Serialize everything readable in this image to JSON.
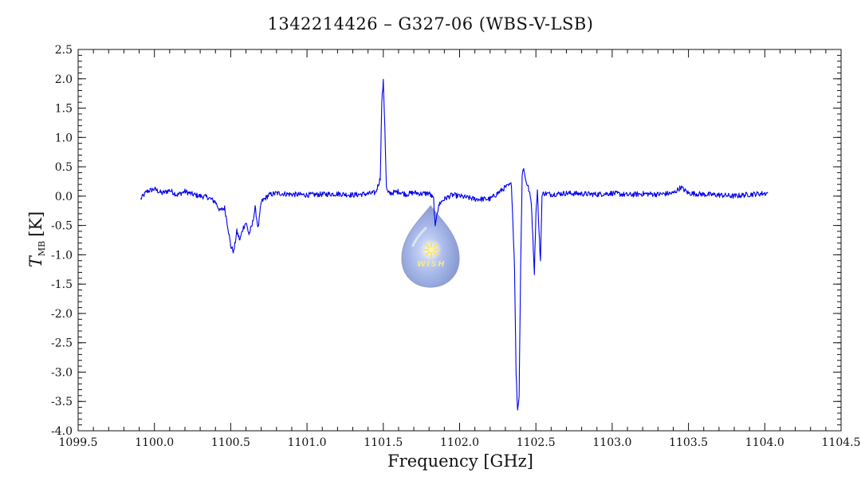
{
  "chart_data": {
    "type": "line",
    "title": "1342214426 – G327-06 (WBS-V-LSB)",
    "xlabel": "Frequency [GHz]",
    "ylabel": {
      "symbol": "T",
      "subscript": "MB",
      "unit": "[K]"
    },
    "xlim": [
      1099.5,
      1104.5
    ],
    "ylim": [
      -4.0,
      2.5
    ],
    "xticks": [
      "1099.5",
      "1100.0",
      "1100.5",
      "1101.0",
      "1101.5",
      "1102.0",
      "1102.5",
      "1103.0",
      "1103.5",
      "1104.0",
      "1104.5"
    ],
    "yticks": [
      "2.5",
      "2.0",
      "1.5",
      "1.0",
      "0.5",
      "0.0",
      "-0.5",
      "-1.0",
      "-1.5",
      "-2.0",
      "-2.5",
      "-3.0",
      "-3.5",
      "-4.0"
    ],
    "line_color": "#0000ee",
    "grid": false,
    "series": [
      {
        "x": [
          1099.91,
          1099.95,
          1100.0,
          1100.05,
          1100.1,
          1100.15,
          1100.2,
          1100.25,
          1100.3,
          1100.35,
          1100.4,
          1100.43,
          1100.46,
          1100.48,
          1100.5,
          1100.52,
          1100.54,
          1100.56,
          1100.58,
          1100.6,
          1100.62,
          1100.64,
          1100.66,
          1100.68,
          1100.7,
          1100.75,
          1100.8,
          1100.9,
          1101.0,
          1101.1,
          1101.2,
          1101.3,
          1101.4,
          1101.45,
          1101.48,
          1101.49,
          1101.5,
          1101.51,
          1101.52,
          1101.53,
          1101.55,
          1101.6,
          1101.65,
          1101.7,
          1101.75,
          1101.8,
          1101.83,
          1101.84,
          1101.85,
          1101.87,
          1101.9,
          1101.95,
          1102.0,
          1102.1,
          1102.2,
          1102.3,
          1102.34,
          1102.36,
          1102.37,
          1102.38,
          1102.39,
          1102.4,
          1102.41,
          1102.42,
          1102.43,
          1102.45,
          1102.47,
          1102.49,
          1102.5,
          1102.51,
          1102.52,
          1102.53,
          1102.54,
          1102.55,
          1102.6,
          1102.7,
          1102.8,
          1102.9,
          1103.0,
          1103.1,
          1103.2,
          1103.3,
          1103.4,
          1103.45,
          1103.5,
          1103.6,
          1103.7,
          1103.8,
          1103.9,
          1104.02
        ],
        "y": [
          -0.05,
          0.08,
          0.12,
          0.05,
          0.1,
          0.02,
          0.08,
          0.03,
          0.0,
          -0.02,
          -0.1,
          -0.25,
          -0.2,
          -0.5,
          -0.85,
          -0.95,
          -0.6,
          -0.75,
          -0.55,
          -0.45,
          -0.65,
          -0.5,
          -0.2,
          -0.55,
          -0.1,
          0.02,
          0.05,
          0.03,
          0.02,
          0.03,
          0.04,
          0.02,
          0.04,
          0.06,
          0.3,
          1.6,
          1.95,
          1.2,
          0.15,
          0.05,
          0.05,
          0.08,
          0.03,
          0.06,
          0.04,
          0.05,
          -0.05,
          -0.55,
          -0.3,
          -0.12,
          -0.05,
          0.02,
          0.0,
          -0.05,
          -0.05,
          0.15,
          0.2,
          -1.2,
          -3.0,
          -3.65,
          -3.4,
          -1.2,
          0.35,
          0.5,
          0.3,
          0.15,
          -0.1,
          -1.3,
          -0.3,
          0.1,
          -0.6,
          -1.1,
          0.0,
          0.05,
          0.03,
          0.05,
          0.04,
          0.03,
          0.05,
          0.02,
          0.04,
          0.03,
          0.05,
          0.15,
          0.05,
          0.03,
          0.02,
          0.0,
          0.03,
          0.05
        ]
      }
    ]
  },
  "watermark": {
    "logo_text": "WISH",
    "icon": "wish-drop-logo"
  }
}
